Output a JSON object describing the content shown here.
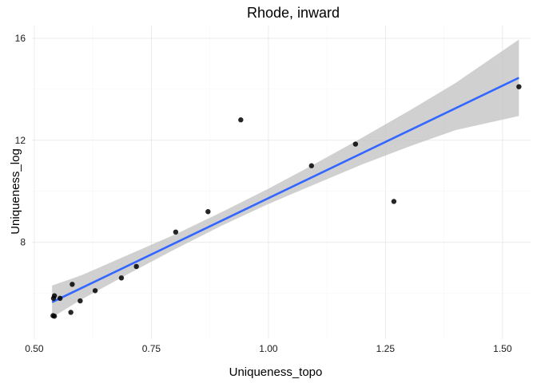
{
  "chart_data": {
    "type": "scatter",
    "title": "Rhode, inward",
    "xlabel": "Uniqueness_topo",
    "ylabel": "Uniqueness_log",
    "xlim": [
      0.495,
      1.56
    ],
    "ylim": [
      4.2,
      16.5
    ],
    "xticks": [
      0.5,
      0.75,
      1.0,
      1.25,
      1.5
    ],
    "xtick_labels": [
      "0.50",
      "0.75",
      "1.00",
      "1.25",
      "1.50"
    ],
    "yticks": [
      8,
      12,
      16
    ],
    "ytick_labels": [
      "8",
      "12",
      "16"
    ],
    "grid": true,
    "legend": "none",
    "colors": {
      "points": "#000000",
      "fit_line": "#3366FF",
      "ribbon": "#BEBEBE",
      "grid_major": "#EBEBEB",
      "grid_minor": "#F5F5F5"
    },
    "points": [
      {
        "x": 0.54,
        "y": 5.12
      },
      {
        "x": 0.543,
        "y": 5.1
      },
      {
        "x": 0.541,
        "y": 5.8
      },
      {
        "x": 0.543,
        "y": 5.9
      },
      {
        "x": 0.555,
        "y": 5.8
      },
      {
        "x": 0.578,
        "y": 5.25
      },
      {
        "x": 0.581,
        "y": 6.35
      },
      {
        "x": 0.598,
        "y": 5.7
      },
      {
        "x": 0.63,
        "y": 6.1
      },
      {
        "x": 0.686,
        "y": 6.6
      },
      {
        "x": 0.718,
        "y": 7.05
      },
      {
        "x": 0.802,
        "y": 8.4
      },
      {
        "x": 0.871,
        "y": 9.2
      },
      {
        "x": 0.941,
        "y": 12.8
      },
      {
        "x": 1.092,
        "y": 11.0
      },
      {
        "x": 1.186,
        "y": 11.85
      },
      {
        "x": 1.268,
        "y": 9.6
      },
      {
        "x": 1.535,
        "y": 14.1
      }
    ],
    "fit": {
      "method": "linear",
      "x": [
        0.538,
        1.535
      ],
      "y": [
        5.65,
        14.45
      ],
      "band": [
        {
          "x": 0.538,
          "lo": 5.05,
          "hi": 6.3
        },
        {
          "x": 0.6,
          "lo": 5.75,
          "hi": 6.7
        },
        {
          "x": 0.7,
          "lo": 6.75,
          "hi": 7.5
        },
        {
          "x": 0.8,
          "lo": 7.72,
          "hi": 8.3
        },
        {
          "x": 0.9,
          "lo": 8.65,
          "hi": 9.18
        },
        {
          "x": 1.0,
          "lo": 9.5,
          "hi": 10.1
        },
        {
          "x": 1.1,
          "lo": 10.28,
          "hi": 11.08
        },
        {
          "x": 1.2,
          "lo": 11.05,
          "hi": 12.1
        },
        {
          "x": 1.3,
          "lo": 11.75,
          "hi": 13.15
        },
        {
          "x": 1.4,
          "lo": 12.4,
          "hi": 14.25
        },
        {
          "x": 1.535,
          "lo": 12.95,
          "hi": 15.95
        }
      ]
    }
  }
}
